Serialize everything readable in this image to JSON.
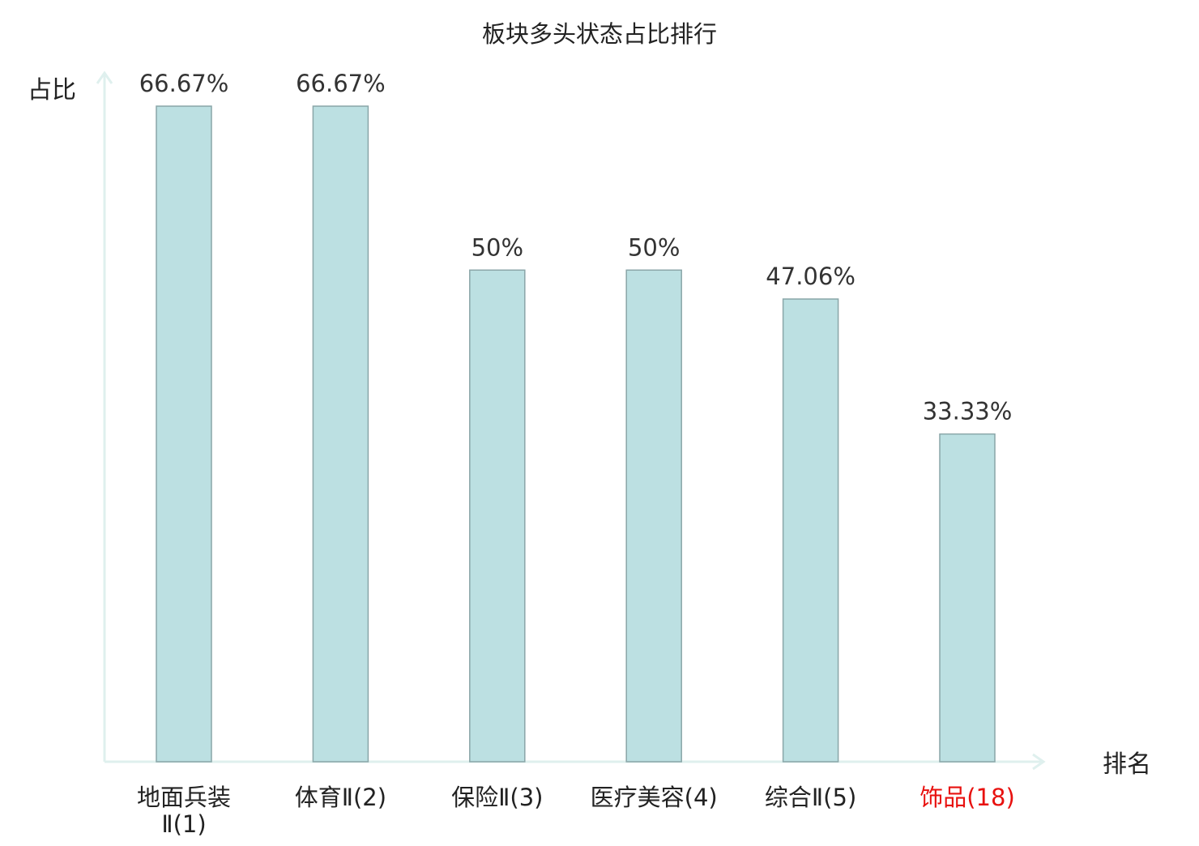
{
  "chart_data": {
    "type": "bar",
    "title": "板块多头状态占比排行",
    "xlabel": "排名",
    "ylabel": "占比",
    "categories": [
      "地面兵装Ⅱ(1)",
      "体育Ⅱ(2)",
      "保险Ⅱ(3)",
      "医疗美容(4)",
      "综合Ⅱ(5)",
      "饰品(18)"
    ],
    "category_labels": [
      {
        "name": "地面兵装Ⅱ",
        "rank": "(1)",
        "lines": [
          "地面兵装",
          "Ⅱ(1)"
        ],
        "highlight": false
      },
      {
        "name": "体育Ⅱ",
        "rank": "(2)",
        "lines": [
          "体育Ⅱ(2)"
        ],
        "highlight": false
      },
      {
        "name": "保险Ⅱ",
        "rank": "(3)",
        "lines": [
          "保险Ⅱ(3)"
        ],
        "highlight": false
      },
      {
        "name": "医疗美容",
        "rank": "(4)",
        "lines": [
          "医疗美容(4)"
        ],
        "highlight": false
      },
      {
        "name": "综合Ⅱ",
        "rank": "(5)",
        "lines": [
          "综合Ⅱ(5)"
        ],
        "highlight": false
      },
      {
        "name": "饰品",
        "rank": "(18)",
        "lines": [
          "饰品(18)"
        ],
        "highlight": true
      }
    ],
    "values": [
      66.67,
      66.67,
      50,
      50,
      47.06,
      33.33
    ],
    "value_labels": [
      "66.67%",
      "66.67%",
      "50%",
      "50%",
      "47.06%",
      "33.33%"
    ],
    "ylim": [
      0,
      66.67
    ],
    "grid": false,
    "legend": "none",
    "colors": {
      "bar_fill": "#bce0e2",
      "bar_stroke": "#8aa6a8",
      "axis": "#dff0ee",
      "text": "#333333",
      "label_text": "#222222",
      "highlight": "#e8110f"
    }
  }
}
